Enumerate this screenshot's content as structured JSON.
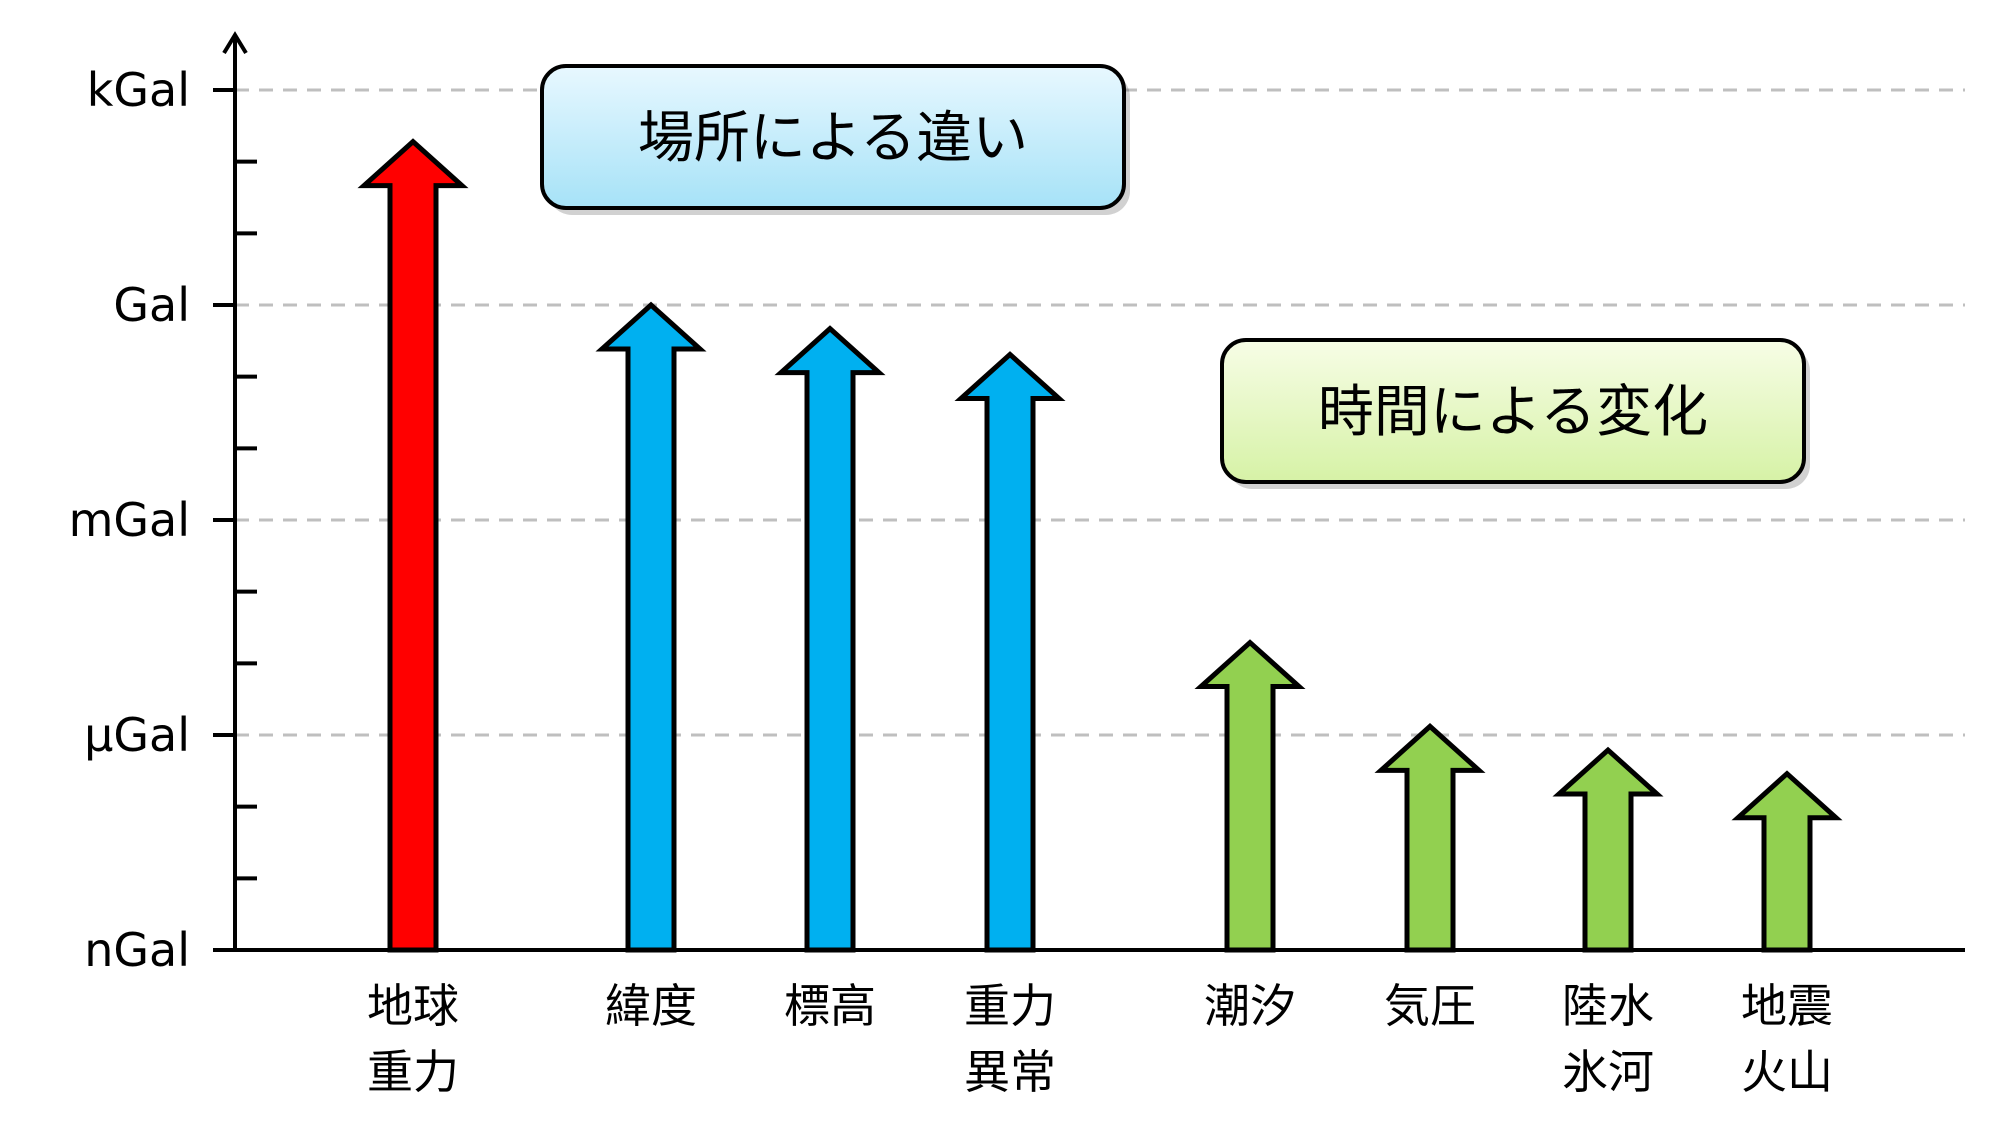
{
  "chart_data": {
    "type": "bar",
    "y_axis": {
      "scale": "log",
      "tick_labels": [
        "nGal",
        "µGal",
        "mGal",
        "Gal",
        "kGal"
      ],
      "grid": true
    },
    "groups": [
      {
        "label": "場所による違い",
        "color": "#00b0f0",
        "box_gradient": [
          "#e8f8ff",
          "#a6e2f7"
        ]
      },
      {
        "label": "時間による変化",
        "color": "#92d050",
        "box_gradient": [
          "#f7fde6",
          "#d6f2a6"
        ]
      }
    ],
    "categories": [
      {
        "lines": [
          "地球",
          "重力"
        ],
        "value": 3.76,
        "color": "#ff0000"
      },
      {
        "lines": [
          "緯度",
          ""
        ],
        "value": 3.0,
        "color": "#00b0f0",
        "group": 0
      },
      {
        "lines": [
          "標高",
          ""
        ],
        "value": 2.89,
        "color": "#00b0f0",
        "group": 0
      },
      {
        "lines": [
          "重力",
          "異常"
        ],
        "value": 2.77,
        "color": "#00b0f0",
        "group": 0
      },
      {
        "lines": [
          "潮汐",
          ""
        ],
        "value": 1.43,
        "color": "#92d050",
        "group": 1
      },
      {
        "lines": [
          "気圧",
          ""
        ],
        "value": 1.04,
        "color": "#92d050",
        "group": 1
      },
      {
        "lines": [
          "陸水",
          "氷河"
        ],
        "value": 0.93,
        "color": "#92d050",
        "group": 1
      },
      {
        "lines": [
          "地震",
          "火山"
        ],
        "value": 0.82,
        "color": "#92d050",
        "group": 1
      }
    ]
  }
}
